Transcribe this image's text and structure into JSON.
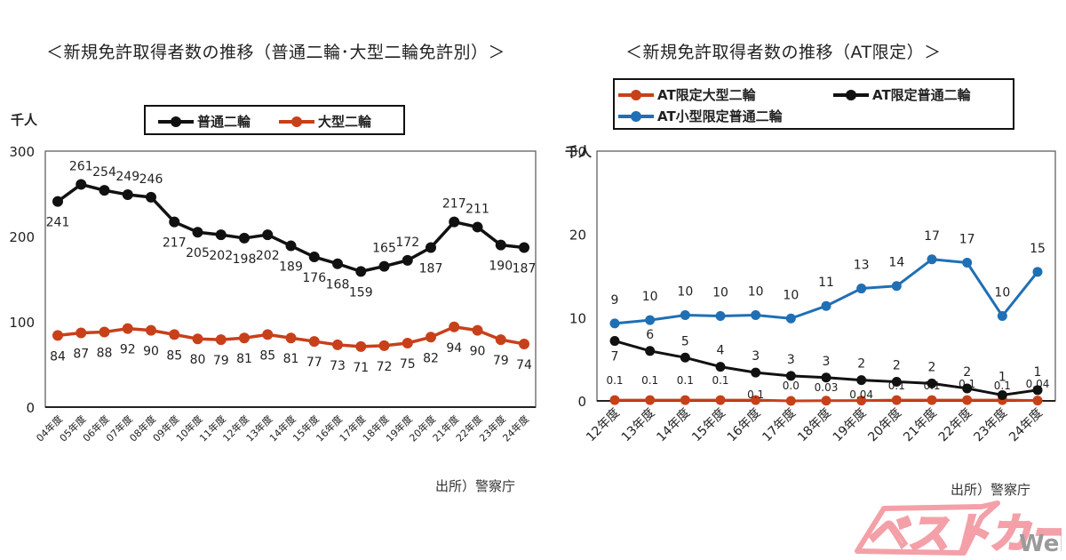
{
  "left_title": "＜新規免許取得者数の推移（普通二輪･大型二輪免許別）＞",
  "right_title": "＜新規免許取得者数の推移（AT限定）＞",
  "source_left": "出所）警察庁",
  "source_right": "出所）警察庁",
  "watermark": {
    "main": "ベストカー",
    "suffix": "Web",
    "color": "#f4a0a8",
    "suffix_color": "#9a9a9a"
  },
  "chart_data": [
    {
      "type": "line",
      "title": "＜新規免許取得者数の推移（普通二輪･大型二輪免許別）＞",
      "ylabel": "千人",
      "xlabel": "",
      "ylim": [
        0,
        300
      ],
      "yticks": [
        0,
        100,
        200,
        300
      ],
      "grid": false,
      "legend_position": "top-center",
      "categories": [
        "04年度",
        "05年度",
        "06年度",
        "07年度",
        "08年度",
        "09年度",
        "10年度",
        "11年度",
        "12年度",
        "13年度",
        "14年度",
        "15年度",
        "16年度",
        "17年度",
        "18年度",
        "19年度",
        "20年度",
        "21年度",
        "22年度",
        "23年度",
        "24年度"
      ],
      "series": [
        {
          "name": "普通二輪",
          "color": "#111111",
          "values": [
            241,
            261,
            254,
            249,
            246,
            217,
            205,
            202,
            198,
            202,
            189,
            176,
            168,
            159,
            165,
            172,
            187,
            217,
            211,
            190,
            187
          ],
          "labels": [
            "241",
            "261",
            "254",
            "249",
            "246",
            "217",
            "205",
            "202",
            "198",
            "202",
            "189",
            "176",
            "168",
            "159",
            "165",
            "172",
            "187",
            "217",
            "211",
            "190",
            "187"
          ]
        },
        {
          "name": "大型二輪",
          "color": "#c8401a",
          "values": [
            84,
            87,
            88,
            92,
            90,
            85,
            80,
            79,
            81,
            85,
            81,
            77,
            73,
            71,
            72,
            75,
            82,
            94,
            90,
            79,
            74
          ],
          "labels": [
            "84",
            "87",
            "88",
            "92",
            "90",
            "85",
            "80",
            "79",
            "81",
            "85",
            "81",
            "77",
            "73",
            "71",
            "72",
            "75",
            "82",
            "94",
            "90",
            "79",
            "74"
          ]
        }
      ]
    },
    {
      "type": "line",
      "title": "＜新規免許取得者数の推移（AT限定）＞",
      "ylabel": "千人",
      "xlabel": "",
      "ylim": [
        0,
        30
      ],
      "yticks": [
        0,
        10,
        20,
        30
      ],
      "grid": false,
      "legend_position": "top",
      "categories": [
        "12年度",
        "13年度",
        "14年度",
        "15年度",
        "16年度",
        "17年度",
        "18年度",
        "19年度",
        "20年度",
        "21年度",
        "22年度",
        "23年度",
        "24年度"
      ],
      "series": [
        {
          "name": "AT限定大型二輪",
          "color": "#c8401a",
          "values": [
            0.1,
            0.1,
            0.1,
            0.1,
            0.1,
            0.0,
            0.03,
            0.04,
            0.1,
            0.1,
            0.1,
            0.1,
            0.04
          ],
          "labels": [
            "0.1",
            "0.1",
            "0.1",
            "0.1",
            "0.1",
            "0.0",
            "0.03",
            "0.04",
            "0.1",
            "0.1",
            "0.1",
            "0.1",
            "0.04"
          ]
        },
        {
          "name": "AT限定普通二輪",
          "color": "#111111",
          "values": [
            7.2,
            6.0,
            5.2,
            4.1,
            3.4,
            3.0,
            2.8,
            2.5,
            2.3,
            2.1,
            1.5,
            0.7,
            1.3
          ],
          "labels": [
            "7",
            "6",
            "5",
            "4",
            "3",
            "3",
            "3",
            "2",
            "2",
            "2",
            "2",
            "1",
            "1"
          ]
        },
        {
          "name": "AT小型限定普通二輪",
          "color": "#1f6fb5",
          "values": [
            9.3,
            9.7,
            10.3,
            10.2,
            10.3,
            9.9,
            11.4,
            13.5,
            13.8,
            17.0,
            16.6,
            10.2,
            15.5
          ],
          "labels": [
            "9",
            "10",
            "10",
            "10",
            "10",
            "10",
            "11",
            "13",
            "14",
            "17",
            "17",
            "10",
            "15"
          ]
        }
      ]
    }
  ]
}
